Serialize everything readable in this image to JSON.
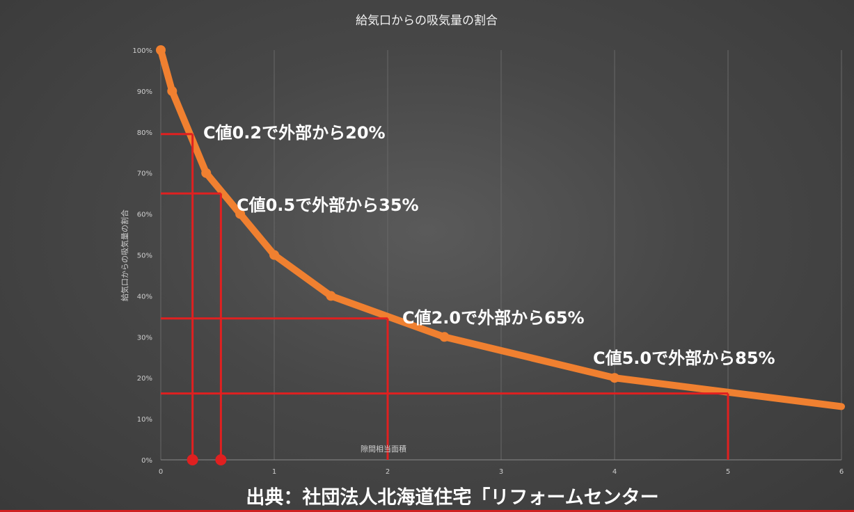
{
  "chart_data": {
    "type": "line",
    "title": "給気口からの吸気量の割合",
    "xlabel": "隙間相当面積",
    "ylabel": "給気口からの吸気量の割合",
    "xlim": [
      0,
      6
    ],
    "ylim": [
      0,
      1
    ],
    "x_ticks": [
      "0",
      "1",
      "2",
      "3",
      "4",
      "5",
      "6"
    ],
    "y_ticks": [
      "0%",
      "10%",
      "20%",
      "30%",
      "40%",
      "50%",
      "60%",
      "70%",
      "80%",
      "90%",
      "100%"
    ],
    "grid": "vertical",
    "line_color": "#f08030",
    "series": [
      {
        "x": [
          0,
          0.1,
          0.4,
          0.7,
          1,
          1.5,
          2.5,
          4,
          6
        ],
        "y": [
          1.0,
          0.9,
          0.7,
          0.6,
          0.5,
          0.4,
          0.3,
          0.2,
          0.13
        ]
      }
    ],
    "annotations": [
      {
        "text": "C値0.2で外部から20%",
        "x": 0.28,
        "y": 0.795
      },
      {
        "text": "C値0.5で外部から35%",
        "x": 0.53,
        "y": 0.65
      },
      {
        "text": "C値2.0で外部から65%",
        "x": 2.0,
        "y": 0.345
      },
      {
        "text": "C値5.0で外部から85%",
        "x": 5.0,
        "y": 0.162
      }
    ],
    "marker_color": "#e02020",
    "axis_markers": [
      0.28,
      0.53
    ]
  },
  "source": "出典：社団法人北海道住宅「リフォームセンター"
}
